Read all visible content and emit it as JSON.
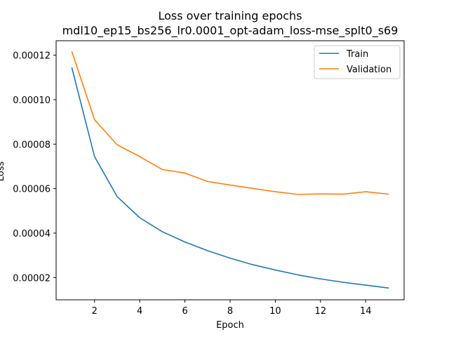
{
  "chart_data": {
    "type": "line",
    "title": "Loss over training epochs",
    "subtitle": "mdl10_ep15_bs256_lr0.0001_opt-adam_loss-mse_splt0_s69",
    "xlabel": "Epoch",
    "ylabel": "Loss",
    "xlim": [
      0.3,
      15.7
    ],
    "ylim": [
      1e-05,
      0.0001265
    ],
    "xticks": [
      2,
      4,
      6,
      8,
      10,
      12,
      14
    ],
    "xtick_labels": [
      "2",
      "4",
      "6",
      "8",
      "10",
      "12",
      "14"
    ],
    "yticks": [
      2e-05,
      4e-05,
      6e-05,
      8e-05,
      0.0001,
      0.00012
    ],
    "ytick_labels": [
      "0.00002",
      "0.00004",
      "0.00006",
      "0.00008",
      "0.00010",
      "0.00012"
    ],
    "grid": false,
    "legend_position": "top-right",
    "x": [
      1,
      2,
      3,
      4,
      5,
      6,
      7,
      8,
      9,
      10,
      11,
      12,
      13,
      14,
      15
    ],
    "series": [
      {
        "name": "Train",
        "color": "#1f77b4",
        "values": [
          0.0001142,
          7.44e-05,
          5.64e-05,
          4.69e-05,
          4.06e-05,
          3.6e-05,
          3.21e-05,
          2.87e-05,
          2.58e-05,
          2.34e-05,
          2.12e-05,
          1.94e-05,
          1.79e-05,
          1.66e-05,
          1.53e-05
        ]
      },
      {
        "name": "Validation",
        "color": "#ff7f0e",
        "values": [
          0.0001215,
          9.1e-05,
          7.97e-05,
          7.44e-05,
          6.86e-05,
          6.7e-05,
          6.32e-05,
          6.16e-05,
          6.01e-05,
          5.86e-05,
          5.74e-05,
          5.76e-05,
          5.75e-05,
          5.86e-05,
          5.75e-05
        ]
      }
    ]
  }
}
